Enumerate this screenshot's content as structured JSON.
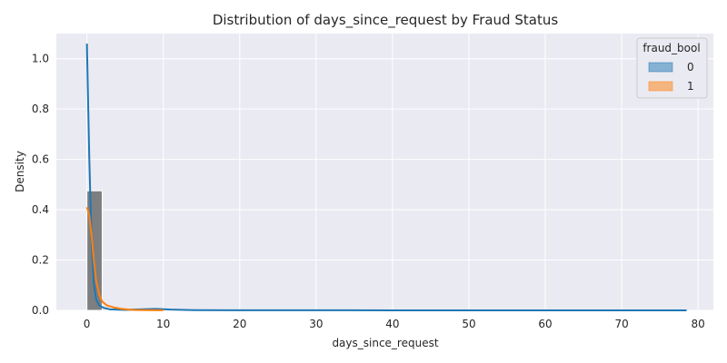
{
  "chart_data": {
    "type": "histogram-kde",
    "title": "Distribution of days_since_request by Fraud Status",
    "xlabel": "days_since_request",
    "ylabel": "Density",
    "xlim": [
      -4,
      82
    ],
    "ylim": [
      0,
      1.1
    ],
    "xticks": [
      0,
      10,
      20,
      30,
      40,
      50,
      60,
      70,
      80
    ],
    "yticks": [
      0.0,
      0.2,
      0.4,
      0.6,
      0.8,
      1.0
    ],
    "tick_labels_x": [
      "0",
      "10",
      "20",
      "30",
      "40",
      "50",
      "60",
      "70",
      "80"
    ],
    "tick_labels_y": [
      "0.0",
      "0.2",
      "0.4",
      "0.6",
      "0.8",
      "1.0"
    ],
    "grid": true,
    "legend": {
      "title": "fraud_bool",
      "placement": "top-right"
    },
    "histogram": {
      "bins": [
        {
          "x0": 0,
          "x1": 2,
          "density": 0.475
        }
      ],
      "overlap_color": "#7d7e80"
    },
    "series": [
      {
        "name": "0",
        "color": "#1f77b4",
        "kde": [
          [
            0,
            1.06
          ],
          [
            0.3,
            0.62
          ],
          [
            0.6,
            0.28
          ],
          [
            0.9,
            0.11
          ],
          [
            1.2,
            0.045
          ],
          [
            1.6,
            0.02
          ],
          [
            2.2,
            0.01
          ],
          [
            3,
            0.004
          ],
          [
            5,
            0.002
          ],
          [
            7,
            0.004
          ],
          [
            9,
            0.006
          ],
          [
            11,
            0.003
          ],
          [
            14,
            0.001
          ],
          [
            20,
            0.0005
          ],
          [
            40,
            0.0002
          ],
          [
            60,
            0.0001
          ],
          [
            78.5,
            0.0
          ]
        ]
      },
      {
        "name": "1",
        "color": "#ff7f0e",
        "kde": [
          [
            0,
            0.41
          ],
          [
            0.3,
            0.38
          ],
          [
            0.6,
            0.3
          ],
          [
            0.9,
            0.2
          ],
          [
            1.2,
            0.12
          ],
          [
            1.6,
            0.065
          ],
          [
            2.0,
            0.035
          ],
          [
            2.6,
            0.02
          ],
          [
            3.5,
            0.012
          ],
          [
            4.5,
            0.006
          ],
          [
            6,
            0.002
          ],
          [
            8,
            0.001
          ],
          [
            10,
            0.0005
          ]
        ]
      }
    ]
  }
}
